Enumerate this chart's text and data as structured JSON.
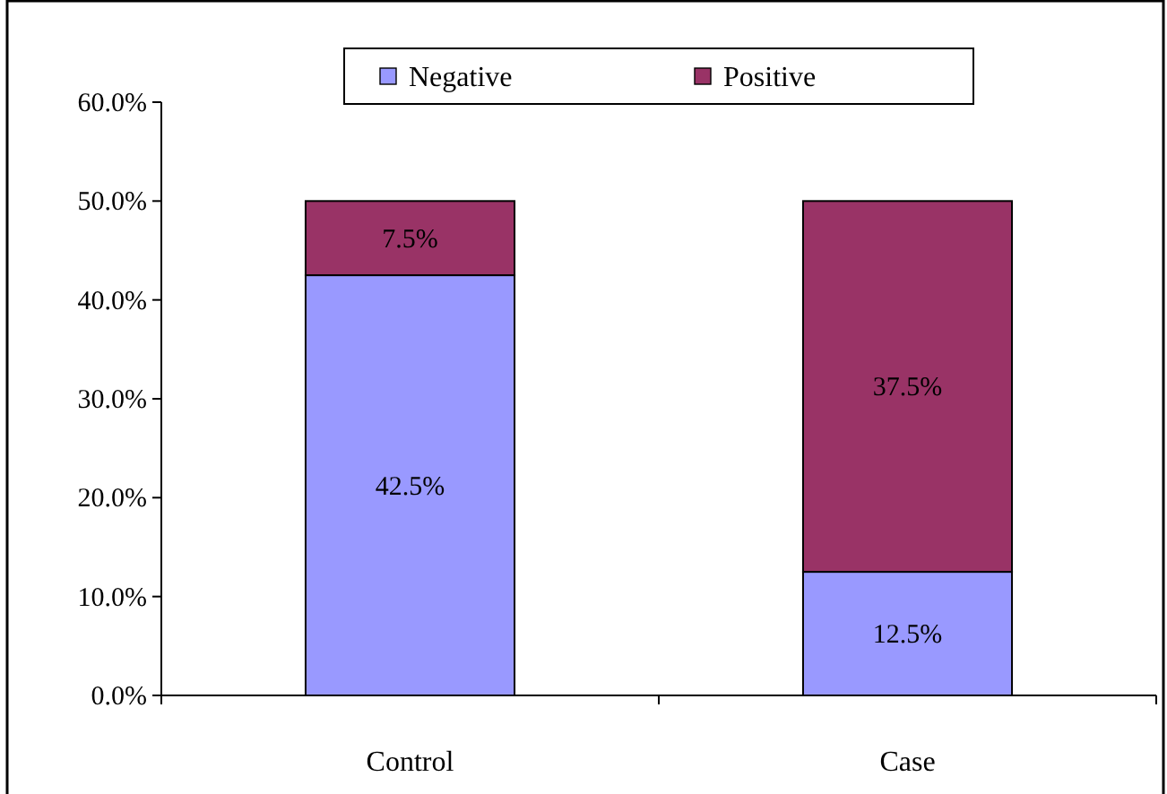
{
  "chart_data": {
    "type": "bar",
    "stacked": true,
    "categories": [
      "Control",
      "Case"
    ],
    "series": [
      {
        "name": "Negative",
        "color": "#9999ff",
        "values": [
          42.5,
          12.5
        ],
        "value_labels": [
          "42.5%",
          "12.5%"
        ]
      },
      {
        "name": "Positive",
        "color": "#993366",
        "values": [
          7.5,
          37.5
        ],
        "value_labels": [
          "7.5%",
          "37.5%"
        ]
      }
    ],
    "ylim": [
      0,
      60
    ],
    "yticks": [
      {
        "value": 0,
        "label": "0.0%"
      },
      {
        "value": 10,
        "label": "10.0%"
      },
      {
        "value": 20,
        "label": "20.0%"
      },
      {
        "value": 30,
        "label": "30.0%"
      },
      {
        "value": 40,
        "label": "40.0%"
      },
      {
        "value": 50,
        "label": "50.0%"
      },
      {
        "value": 60,
        "label": "60.0%"
      }
    ],
    "grid": false,
    "legend": "top"
  }
}
